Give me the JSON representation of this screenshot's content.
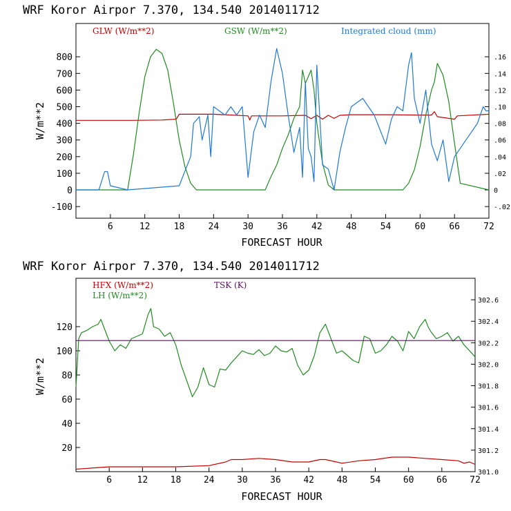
{
  "chart_data": [
    {
      "type": "line",
      "title": "WRF  Koror Airpor   7.370, 134.540  2014011712",
      "xlabel": "FORECAST HOUR",
      "ylabel": "W/m**2",
      "xlim": [
        0,
        72
      ],
      "ylim": [
        -170,
        1000
      ],
      "y2lim": [
        -0.034,
        0.2
      ],
      "x_ticks": [
        "6",
        "12",
        "18",
        "24",
        "30",
        "36",
        "42",
        "48",
        "54",
        "60",
        "66",
        "72"
      ],
      "y_ticks": [
        "-100",
        "0",
        "100",
        "200",
        "300",
        "400",
        "500",
        "600",
        "700",
        "800"
      ],
      "y2_ticks": [
        "-.02",
        "0",
        ".02",
        ".04",
        ".06",
        ".08",
        ".10",
        ".12",
        ".14",
        ".16"
      ],
      "grid": false,
      "legend": "top",
      "series": [
        {
          "name": "GLW (W/m**2)",
          "color": "#c00000",
          "axis": "left",
          "x": [
            0,
            10,
            15,
            17.5,
            18,
            24,
            30,
            30.3,
            30.6,
            36,
            40,
            41,
            42,
            43,
            44,
            45,
            46,
            48,
            54,
            60,
            62,
            62.5,
            63,
            66,
            66.5,
            72
          ],
          "y": [
            418,
            418,
            420,
            425,
            455,
            455,
            445,
            420,
            445,
            445,
            448,
            428,
            448,
            425,
            448,
            430,
            448,
            452,
            452,
            450,
            450,
            470,
            440,
            425,
            445,
            455
          ]
        },
        {
          "name": "GSW (W/m**2)",
          "color": "#1f8b1f",
          "axis": "left",
          "x": [
            0,
            9,
            10,
            11,
            12,
            13,
            14,
            15,
            16,
            17,
            18,
            19,
            20,
            21,
            33,
            34,
            35,
            36,
            37,
            38,
            39,
            39.5,
            40,
            41,
            41.5,
            42,
            43,
            44,
            45,
            57,
            58,
            59,
            60,
            61,
            62,
            62.5,
            63,
            64,
            65,
            66,
            67,
            72
          ],
          "y": [
            0,
            0,
            210,
            460,
            680,
            800,
            845,
            820,
            720,
            520,
            300,
            140,
            40,
            0,
            0,
            80,
            150,
            250,
            330,
            430,
            500,
            720,
            640,
            720,
            600,
            400,
            160,
            30,
            0,
            0,
            40,
            120,
            260,
            450,
            600,
            650,
            760,
            690,
            530,
            280,
            40,
            0
          ]
        },
        {
          "name": "Integrated cloud (mm)",
          "color": "#1e78d8",
          "axis": "right",
          "x": [
            0,
            4,
            5,
            5.5,
            6,
            9,
            18,
            20,
            20.5,
            21.5,
            22,
            23,
            23.5,
            24,
            26,
            27,
            28,
            29,
            30,
            31,
            32,
            33,
            34,
            35,
            36,
            37,
            38,
            39,
            39.5,
            40,
            40.5,
            41,
            41.5,
            42,
            43,
            44,
            45,
            46,
            47,
            48,
            50,
            52,
            54,
            55,
            56,
            57,
            58,
            58.5,
            59,
            60,
            61,
            62,
            63,
            64,
            65,
            66,
            67,
            68,
            70,
            71,
            71.5,
            72
          ],
          "y": [
            0,
            0,
            0.022,
            0.022,
            0.005,
            0,
            0.005,
            0.04,
            0.08,
            0.088,
            0.06,
            0.09,
            0.04,
            0.1,
            0.09,
            0.1,
            0.09,
            0.1,
            0.015,
            0.07,
            0.09,
            0.075,
            0.13,
            0.17,
            0.14,
            0.09,
            0.045,
            0.075,
            0.015,
            0.13,
            0.05,
            0.04,
            0.01,
            0.15,
            0.03,
            0.025,
            0.0,
            0.045,
            0.075,
            0.1,
            0.11,
            0.09,
            0.055,
            0.085,
            0.1,
            0.095,
            0.15,
            0.165,
            0.11,
            0.08,
            0.12,
            0.055,
            0.035,
            0.06,
            0.01,
            0.04,
            0.05,
            0.06,
            0.08,
            0.1,
            0.095,
            0.095
          ]
        }
      ]
    },
    {
      "type": "line",
      "title": "WRF  Koror Airpor   7.370, 134.540  2014011712",
      "xlabel": "FORECAST HOUR",
      "ylabel": "W/m**2",
      "xlim": [
        0,
        72
      ],
      "ylim": [
        0,
        160
      ],
      "y2lim": [
        301.0,
        302.8
      ],
      "x_ticks": [
        "6",
        "12",
        "18",
        "24",
        "30",
        "36",
        "42",
        "48",
        "54",
        "60",
        "66",
        "72"
      ],
      "y_ticks": [
        "20",
        "40",
        "60",
        "80",
        "100",
        "120"
      ],
      "y2_ticks": [
        "301.0",
        "301.2",
        "301.4",
        "301.6",
        "301.8",
        "302.0",
        "302.2",
        "302.4",
        "302.6"
      ],
      "grid": false,
      "legend": "top-left",
      "series": [
        {
          "name": "HFX (W/m**2)",
          "color": "#c00000",
          "axis": "left",
          "x": [
            0,
            6,
            12,
            18,
            24,
            27,
            28,
            30,
            33,
            36,
            39,
            42,
            44,
            45,
            47,
            48,
            51,
            54,
            57,
            60,
            63,
            66,
            69,
            70,
            71,
            72
          ],
          "y": [
            2,
            4,
            4,
            4,
            5,
            8,
            10,
            10,
            11,
            10,
            8,
            8,
            10,
            10,
            8,
            7,
            9,
            10,
            12,
            12,
            11,
            10,
            9,
            7,
            8,
            6
          ]
        },
        {
          "name": "LH (W/m**2)",
          "color": "#1f8b1f",
          "axis": "left",
          "x": [
            0,
            0.5,
            1,
            2,
            3,
            4,
            4.5,
            5,
            6,
            7,
            8,
            9,
            10,
            11,
            12,
            13,
            13.5,
            14,
            15,
            16,
            17,
            18,
            19,
            20,
            21,
            22,
            23,
            24,
            25,
            26,
            27,
            28,
            29,
            30,
            31,
            32,
            33,
            34,
            35,
            36,
            37,
            38,
            39,
            40,
            41,
            42,
            43,
            44,
            45,
            46,
            47,
            48,
            49,
            50,
            51,
            52,
            53,
            54,
            55,
            56,
            57,
            58,
            59,
            60,
            61,
            62,
            63,
            63.5,
            64,
            65,
            66,
            67,
            68,
            69,
            70,
            71,
            72
          ],
          "y": [
            70,
            110,
            115,
            117,
            120,
            122,
            126,
            120,
            108,
            100,
            105,
            102,
            110,
            112,
            114,
            130,
            135,
            120,
            118,
            112,
            115,
            105,
            88,
            75,
            62,
            70,
            86,
            72,
            70,
            85,
            84,
            90,
            95,
            100,
            98,
            97,
            101,
            96,
            98,
            104,
            100,
            99,
            102,
            88,
            80,
            84,
            96,
            115,
            122,
            110,
            98,
            100,
            96,
            92,
            90,
            112,
            110,
            98,
            100,
            105,
            112,
            108,
            100,
            116,
            110,
            120,
            126,
            120,
            116,
            110,
            112,
            115,
            108,
            112,
            105,
            100,
            95
          ]
        },
        {
          "name": "TSK (K)",
          "color": "#5a1060",
          "axis": "right",
          "x": [
            0,
            72
          ],
          "y": [
            302.22,
            302.22
          ]
        }
      ]
    }
  ]
}
